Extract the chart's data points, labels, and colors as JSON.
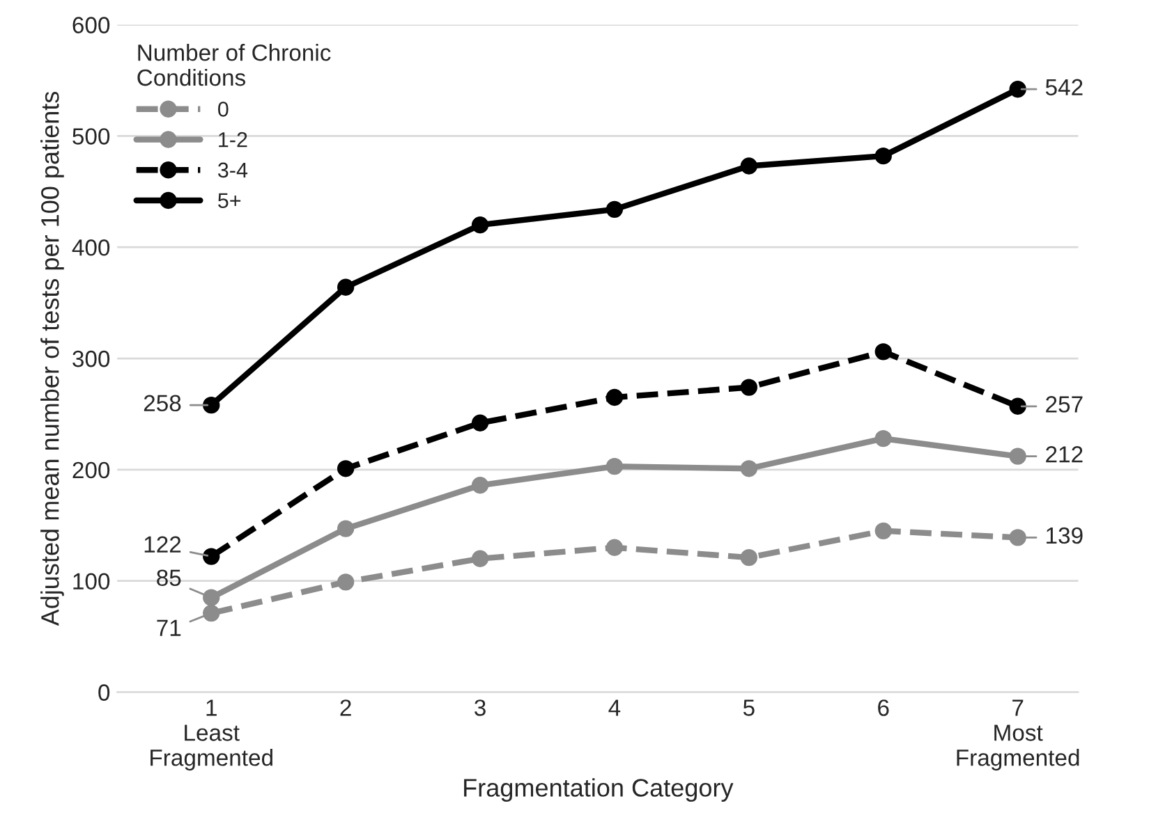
{
  "chart_data": {
    "type": "line",
    "xlabel": "Fragmentation Category",
    "ylabel": "Adjusted mean number of tests per 100 patients",
    "categories": [
      "1\nLeast\nFragmented",
      "2",
      "3",
      "4",
      "5",
      "6",
      "7\nMost\nFragmented"
    ],
    "ylim": [
      0,
      600
    ],
    "yticks": [
      0,
      100,
      200,
      300,
      400,
      500,
      600
    ],
    "grid": "y",
    "legend": "top left",
    "legend_title": "Number of Chronic\nConditions",
    "marker": "circle",
    "series": [
      {
        "name": "0",
        "color": "#8c8c8c",
        "line_style": "dashed",
        "values": [
          71,
          99,
          120,
          130,
          121,
          145,
          139
        ],
        "value_labels": [
          "71",
          null,
          null,
          null,
          null,
          null,
          "139"
        ]
      },
      {
        "name": "1-2",
        "color": "#8c8c8c",
        "line_style": "solid",
        "values": [
          85,
          147,
          186,
          203,
          201,
          228,
          212
        ],
        "value_labels": [
          "85",
          null,
          null,
          null,
          null,
          null,
          "212"
        ]
      },
      {
        "name": "3-4",
        "color": "#000000",
        "line_style": "dashed",
        "values": [
          122,
          201,
          242,
          265,
          274,
          306,
          257
        ],
        "value_labels": [
          "122",
          null,
          null,
          null,
          null,
          null,
          "257"
        ]
      },
      {
        "name": "5+",
        "color": "#000000",
        "line_style": "solid",
        "values": [
          258,
          364,
          420,
          434,
          473,
          482,
          542
        ],
        "value_labels": [
          "258",
          null,
          null,
          null,
          null,
          null,
          "542"
        ]
      }
    ]
  }
}
